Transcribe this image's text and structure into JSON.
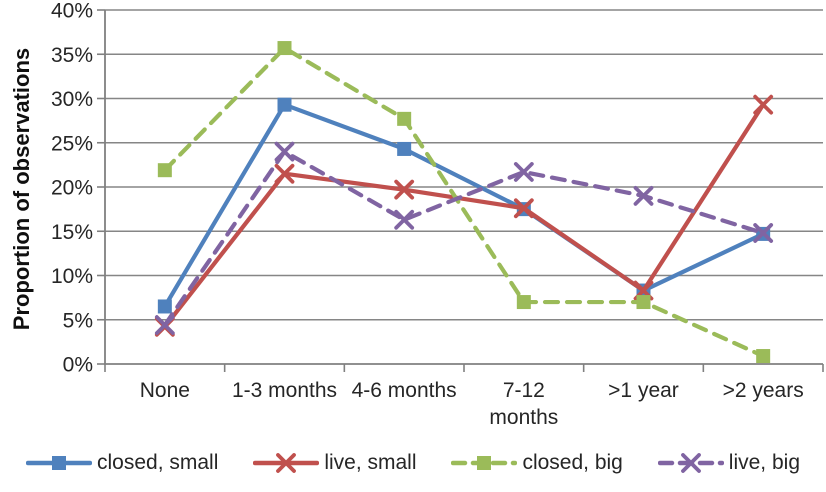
{
  "chart_data": {
    "type": "line",
    "title": "",
    "ylabel": "Proportion of observations",
    "xlabel": "",
    "ylim": [
      0,
      40
    ],
    "y_tick_step": 5,
    "y_ticks": [
      "0%",
      "5%",
      "10%",
      "15%",
      "20%",
      "25%",
      "30%",
      "35%",
      "40%"
    ],
    "grid": "horizontal",
    "legend_position": "bottom",
    "categories": [
      "None",
      "1-3 months",
      "4-6 months",
      "7-12\nmonths",
      ">1 year",
      ">2 years"
    ],
    "series": [
      {
        "name": "closed, small",
        "color": "#4F81BD",
        "line": "solid",
        "marker": "square",
        "values": [
          6.5,
          29.3,
          24.3,
          17.5,
          8.3,
          14.7
        ]
      },
      {
        "name": "live, small",
        "color": "#C0504D",
        "line": "solid",
        "marker": "x",
        "values": [
          4.2,
          21.5,
          19.7,
          17.6,
          8.3,
          29.3
        ]
      },
      {
        "name": "closed, big",
        "color": "#9BBB59",
        "line": "dashed",
        "marker": "square",
        "values": [
          21.9,
          35.7,
          27.7,
          7.0,
          7.0,
          0.9
        ]
      },
      {
        "name": "live, big",
        "color": "#8064A2",
        "line": "dashed",
        "marker": "x",
        "values": [
          4.4,
          24.0,
          16.3,
          21.7,
          19.0,
          14.8
        ]
      }
    ],
    "axis_color": "#808080",
    "grid_color": "#868686",
    "text_color": "#262626"
  }
}
